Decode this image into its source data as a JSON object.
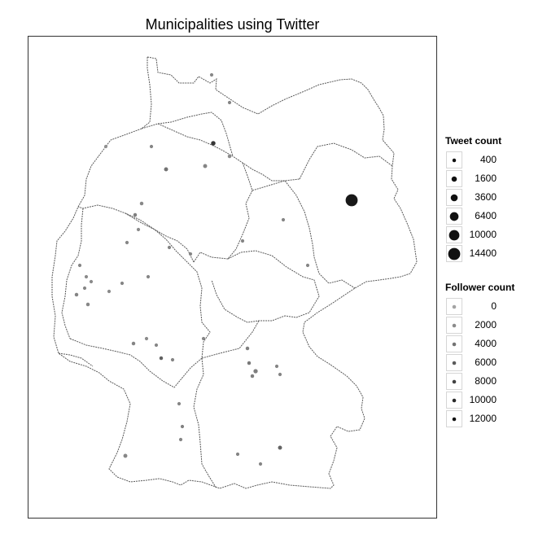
{
  "title": "Municipalities using Twitter",
  "legend_tweets": {
    "title": "Tweet count",
    "items": [
      {
        "label": "400",
        "value": 400
      },
      {
        "label": "1600",
        "value": 1600
      },
      {
        "label": "3600",
        "value": 3600
      },
      {
        "label": "6400",
        "value": 6400
      },
      {
        "label": "10000",
        "value": 10000
      },
      {
        "label": "14400",
        "value": 14400
      }
    ]
  },
  "legend_followers": {
    "title": "Follower count",
    "items": [
      {
        "label": "0",
        "value": 0
      },
      {
        "label": "2000",
        "value": 2000
      },
      {
        "label": "4000",
        "value": 4000
      },
      {
        "label": "6000",
        "value": 6000
      },
      {
        "label": "8000",
        "value": 8000
      },
      {
        "label": "10000",
        "value": 10000
      },
      {
        "label": "12000",
        "value": 12000
      }
    ]
  },
  "colors": {
    "follower_low": "#a3a3a3",
    "follower_high": "#121212",
    "border": "#5a5a5a",
    "panel_border": "#333333"
  }
}
